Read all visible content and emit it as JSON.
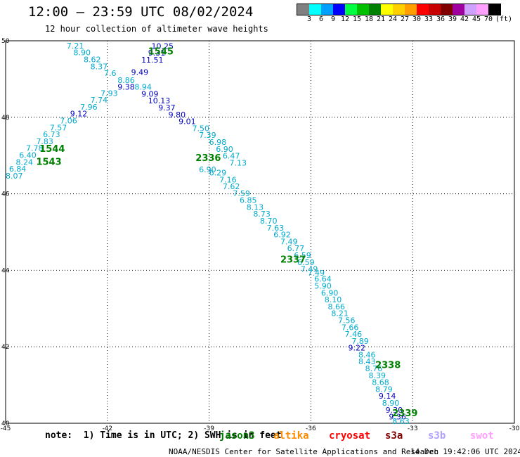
{
  "header": {
    "title": "12:00 — 23:59 UTC 08/02/2024",
    "subtitle": "12 hour collection of altimeter wave heights"
  },
  "colorbar": {
    "unit_label": "(ft)",
    "colors": [
      "#808080",
      "#00ffff",
      "#00a0ff",
      "#0000ff",
      "#00ff40",
      "#00c000",
      "#008000",
      "#ffff00",
      "#ffd000",
      "#ffa000",
      "#ff0000",
      "#c80000",
      "#800000",
      "#a000a0",
      "#d0a0ff",
      "#ffa0ff",
      "#000000"
    ],
    "labels": [
      "3",
      "6",
      "9",
      "12",
      "15",
      "18",
      "21",
      "24",
      "27",
      "30",
      "33",
      "36",
      "39",
      "42",
      "45",
      "70"
    ]
  },
  "map": {
    "lat_min": 40,
    "lat_max": 50,
    "lon_min": -45,
    "lon_max": -30,
    "lat_ticks": [
      "50",
      "48",
      "46",
      "44",
      "42",
      "40"
    ],
    "lon_ticks": [
      "-45",
      "-42",
      "-39",
      "-36",
      "-33",
      "-30"
    ],
    "grid": true,
    "passes": [
      {
        "label": "1545",
        "lat": 49.64,
        "lon": -40.8
      },
      {
        "label": "1544",
        "lat": 47.1,
        "lon": -44.0
      },
      {
        "label": "1543",
        "lat": 46.76,
        "lon": -44.1
      },
      {
        "label": "2336",
        "lat": 46.86,
        "lon": -39.4
      },
      {
        "label": "2337",
        "lat": 44.2,
        "lon": -36.9
      },
      {
        "label": "2338",
        "lat": 41.44,
        "lon": -34.1
      },
      {
        "label": "2339",
        "lat": 40.18,
        "lon": -33.6
      }
    ],
    "swh": [
      {
        "v": "10.25",
        "lat": 49.79,
        "lon": -40.7,
        "c": "#0000c0"
      },
      {
        "v": "9.31",
        "lat": 49.61,
        "lon": -40.8,
        "c": "#0000c0"
      },
      {
        "v": "11.51",
        "lat": 49.43,
        "lon": -41.0,
        "c": "#0000c0"
      },
      {
        "v": "9.49",
        "lat": 49.11,
        "lon": -41.3,
        "c": "#0000c0"
      },
      {
        "v": "7.21",
        "lat": 49.8,
        "lon": -43.2,
        "c": "#00aacc"
      },
      {
        "v": "8.90",
        "lat": 49.62,
        "lon": -43.0,
        "c": "#00aacc"
      },
      {
        "v": "8.62",
        "lat": 49.44,
        "lon": -42.7,
        "c": "#00aacc"
      },
      {
        "v": "8.37",
        "lat": 49.26,
        "lon": -42.5,
        "c": "#00aacc"
      },
      {
        "v": "7.6",
        "lat": 49.08,
        "lon": -42.1,
        "c": "#00aacc"
      },
      {
        "v": "8.86",
        "lat": 48.9,
        "lon": -41.7,
        "c": "#00aacc"
      },
      {
        "v": "9.38",
        "lat": 48.72,
        "lon": -41.7,
        "c": "#0000c0"
      },
      {
        "v": "8.94",
        "lat": 48.72,
        "lon": -41.2,
        "c": "#00aacc"
      },
      {
        "v": "7.93",
        "lat": 48.56,
        "lon": -42.2,
        "c": "#00aacc"
      },
      {
        "v": "9.09",
        "lat": 48.54,
        "lon": -41.0,
        "c": "#0000c0"
      },
      {
        "v": "7.74",
        "lat": 48.38,
        "lon": -42.5,
        "c": "#00aacc"
      },
      {
        "v": "10.13",
        "lat": 48.36,
        "lon": -40.8,
        "c": "#0000c0"
      },
      {
        "v": "7.96",
        "lat": 48.2,
        "lon": -42.8,
        "c": "#00aacc"
      },
      {
        "v": "9.37",
        "lat": 48.18,
        "lon": -40.5,
        "c": "#0000c0"
      },
      {
        "v": "9.12",
        "lat": 48.02,
        "lon": -43.1,
        "c": "#0000c0"
      },
      {
        "v": "9.80",
        "lat": 48.0,
        "lon": -40.2,
        "c": "#0000c0"
      },
      {
        "v": "7.06",
        "lat": 47.84,
        "lon": -43.4,
        "c": "#00aacc"
      },
      {
        "v": "9.01",
        "lat": 47.82,
        "lon": -39.9,
        "c": "#0000c0"
      },
      {
        "v": "7.57",
        "lat": 47.66,
        "lon": -43.7,
        "c": "#00aacc"
      },
      {
        "v": "7.50",
        "lat": 47.64,
        "lon": -39.5,
        "c": "#00aacc"
      },
      {
        "v": "6.73",
        "lat": 47.48,
        "lon": -43.9,
        "c": "#00aacc"
      },
      {
        "v": "7.39",
        "lat": 47.46,
        "lon": -39.3,
        "c": "#00aacc"
      },
      {
        "v": "7.83",
        "lat": 47.3,
        "lon": -44.1,
        "c": "#00aacc"
      },
      {
        "v": "6.98",
        "lat": 47.28,
        "lon": -39.0,
        "c": "#00aacc"
      },
      {
        "v": "7.78",
        "lat": 47.12,
        "lon": -44.4,
        "c": "#00aacc"
      },
      {
        "v": "6.90",
        "lat": 47.1,
        "lon": -38.8,
        "c": "#00aacc"
      },
      {
        "v": "6.40",
        "lat": 46.94,
        "lon": -44.6,
        "c": "#00aacc"
      },
      {
        "v": "6.47",
        "lat": 46.92,
        "lon": -38.6,
        "c": "#00aacc"
      },
      {
        "v": "8.24",
        "lat": 46.76,
        "lon": -44.7,
        "c": "#00aacc"
      },
      {
        "v": "7.13",
        "lat": 46.74,
        "lon": -38.4,
        "c": "#00aacc"
      },
      {
        "v": "6.84",
        "lat": 46.58,
        "lon": -44.9,
        "c": "#00aacc"
      },
      {
        "v": "6.90",
        "lat": 46.56,
        "lon": -39.3,
        "c": "#00aacc"
      },
      {
        "v": "6.29",
        "lat": 46.48,
        "lon": -39.0,
        "c": "#00aacc"
      },
      {
        "v": "8.07",
        "lat": 46.4,
        "lon": -45.0,
        "c": "#00aacc"
      },
      {
        "v": "7.16",
        "lat": 46.3,
        "lon": -38.7,
        "c": "#00aacc"
      },
      {
        "v": "7.62",
        "lat": 46.12,
        "lon": -38.6,
        "c": "#00aacc"
      },
      {
        "v": "7.59",
        "lat": 45.94,
        "lon": -38.3,
        "c": "#00aacc"
      },
      {
        "v": "6.85",
        "lat": 45.76,
        "lon": -38.1,
        "c": "#00aacc"
      },
      {
        "v": "8.13",
        "lat": 45.58,
        "lon": -37.9,
        "c": "#00aacc"
      },
      {
        "v": "8.73",
        "lat": 45.4,
        "lon": -37.7,
        "c": "#00aacc"
      },
      {
        "v": "8.70",
        "lat": 45.22,
        "lon": -37.5,
        "c": "#00aacc"
      },
      {
        "v": "7.63",
        "lat": 45.04,
        "lon": -37.3,
        "c": "#00aacc"
      },
      {
        "v": "6.92",
        "lat": 44.86,
        "lon": -37.1,
        "c": "#00aacc"
      },
      {
        "v": "7.49",
        "lat": 44.68,
        "lon": -36.9,
        "c": "#00aacc"
      },
      {
        "v": "6.77",
        "lat": 44.5,
        "lon": -36.7,
        "c": "#00aacc"
      },
      {
        "v": "6.59",
        "lat": 44.32,
        "lon": -36.5,
        "c": "#00aacc"
      },
      {
        "v": "6.59",
        "lat": 44.14,
        "lon": -36.4,
        "c": "#00aacc"
      },
      {
        "v": "7.49",
        "lat": 43.96,
        "lon": -36.3,
        "c": "#00aacc"
      },
      {
        "v": "7.49",
        "lat": 43.86,
        "lon": -36.1,
        "c": "#00aacc"
      },
      {
        "v": "6.64",
        "lat": 43.7,
        "lon": -35.9,
        "c": "#00aacc"
      },
      {
        "v": "5.90",
        "lat": 43.52,
        "lon": -35.9,
        "c": "#00aacc"
      },
      {
        "v": "6.90",
        "lat": 43.34,
        "lon": -35.7,
        "c": "#00aacc"
      },
      {
        "v": "8.10",
        "lat": 43.16,
        "lon": -35.6,
        "c": "#00aacc"
      },
      {
        "v": "8.66",
        "lat": 42.98,
        "lon": -35.5,
        "c": "#00aacc"
      },
      {
        "v": "8.21",
        "lat": 42.8,
        "lon": -35.4,
        "c": "#00aacc"
      },
      {
        "v": "7.56",
        "lat": 42.62,
        "lon": -35.2,
        "c": "#00aacc"
      },
      {
        "v": "7.66",
        "lat": 42.44,
        "lon": -35.1,
        "c": "#00aacc"
      },
      {
        "v": "7.46",
        "lat": 42.26,
        "lon": -35.0,
        "c": "#00aacc"
      },
      {
        "v": "7.89",
        "lat": 42.08,
        "lon": -34.8,
        "c": "#00aacc"
      },
      {
        "v": "9.22",
        "lat": 41.9,
        "lon": -34.9,
        "c": "#0000c0"
      },
      {
        "v": "8.46",
        "lat": 41.72,
        "lon": -34.6,
        "c": "#00aacc"
      },
      {
        "v": "8.43",
        "lat": 41.54,
        "lon": -34.6,
        "c": "#00aacc"
      },
      {
        "v": "8.76",
        "lat": 41.36,
        "lon": -34.4,
        "c": "#00aacc"
      },
      {
        "v": "8.39",
        "lat": 41.18,
        "lon": -34.3,
        "c": "#00aacc"
      },
      {
        "v": "8.68",
        "lat": 41.0,
        "lon": -34.2,
        "c": "#00aacc"
      },
      {
        "v": "8.79",
        "lat": 40.82,
        "lon": -34.1,
        "c": "#00aacc"
      },
      {
        "v": "9.14",
        "lat": 40.64,
        "lon": -34.0,
        "c": "#0000c0"
      },
      {
        "v": "8.90",
        "lat": 40.46,
        "lon": -33.9,
        "c": "#00aacc"
      },
      {
        "v": "9.30",
        "lat": 40.28,
        "lon": -33.8,
        "c": "#0000c0"
      },
      {
        "v": "9.36",
        "lat": 40.1,
        "lon": -33.7,
        "c": "#0000c0"
      },
      {
        "v": "8.63",
        "lat": 39.98,
        "lon": -33.6,
        "c": "#00aacc"
      }
    ]
  },
  "footer": {
    "note": "note:  1) Time is in UTC; 2) SWH is in feet",
    "legend": [
      {
        "name": "jason3",
        "color": "#008000"
      },
      {
        "name": "altika",
        "color": "#ff8c00"
      },
      {
        "name": "cryosat",
        "color": "#ff0000"
      },
      {
        "name": "s3a",
        "color": "#800000"
      },
      {
        "name": "s3b",
        "color": "#b0a0ff"
      },
      {
        "name": "swot",
        "color": "#ffa0ff"
      }
    ],
    "credit": "NOAA/NESDIS Center for Satellite Applications and Research",
    "timestamp": "14 Dec 19:42:06 UTC 2024"
  }
}
